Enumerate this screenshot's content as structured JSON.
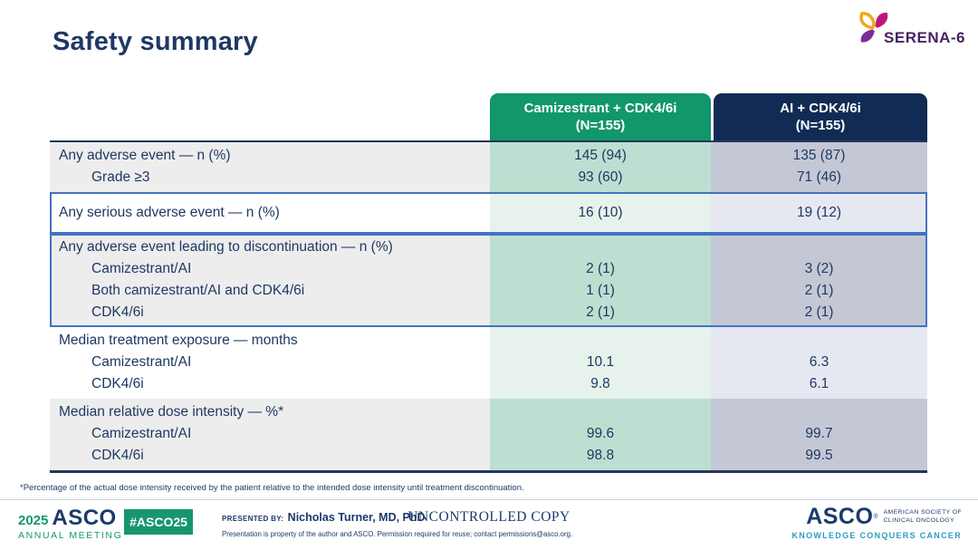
{
  "slide": {
    "title": "Safety summary",
    "footnote": "*Percentage of the actual dose intensity received by the patient relative to the intended dose intensity until treatment discontinuation."
  },
  "serena_logo": {
    "text": "SERENA-6",
    "petal_colors": {
      "orange": "#F2A71B",
      "magenta": "#C2137C",
      "purple": "#7B2E9B"
    }
  },
  "table": {
    "columns": [
      {
        "id": "cami",
        "label": "Camizestrant + CDK4/6i",
        "sublabel": "(N=155)",
        "header_color": "#12966C"
      },
      {
        "id": "ai",
        "label": "AI + CDK4/6i",
        "sublabel": "(N=155)",
        "header_color": "#112B54"
      }
    ],
    "rows": [
      {
        "stripe": "gray",
        "boxed": false,
        "lines": [
          {
            "label": "Any adverse event — n (%)",
            "indent": false,
            "cami": "145 (94)",
            "ai": "135 (87)"
          },
          {
            "label": "Grade ≥3",
            "indent": true,
            "cami": "93 (60)",
            "ai": "71 (46)"
          }
        ]
      },
      {
        "stripe": "white",
        "boxed": true,
        "lines": [
          {
            "label": "Any serious adverse event — n (%)",
            "indent": false,
            "cami": "16 (10)",
            "ai": "19 (12)"
          }
        ]
      },
      {
        "stripe": "gray",
        "boxed": true,
        "lines": [
          {
            "label": "Any adverse event leading to discontinuation — n (%)",
            "indent": false,
            "cami": "",
            "ai": ""
          },
          {
            "label": "Camizestrant/AI",
            "indent": true,
            "cami": "2 (1)",
            "ai": "3 (2)"
          },
          {
            "label": "Both camizestrant/AI and CDK4/6i",
            "indent": true,
            "cami": "1 (1)",
            "ai": "2 (1)"
          },
          {
            "label": "CDK4/6i",
            "indent": true,
            "cami": "2 (1)",
            "ai": "2 (1)"
          }
        ]
      },
      {
        "stripe": "white",
        "boxed": false,
        "lines": [
          {
            "label": "Median treatment exposure — months",
            "indent": false,
            "cami": "",
            "ai": ""
          },
          {
            "label": "Camizestrant/AI",
            "indent": true,
            "cami": "10.1",
            "ai": "6.3"
          },
          {
            "label": "CDK4/6i",
            "indent": true,
            "cami": "9.8",
            "ai": "6.1"
          }
        ]
      },
      {
        "stripe": "gray",
        "boxed": false,
        "lines": [
          {
            "label": "Median relative dose intensity — %*",
            "indent": false,
            "cami": "",
            "ai": ""
          },
          {
            "label": "Camizestrant/AI",
            "indent": true,
            "cami": "99.6",
            "ai": "99.7"
          },
          {
            "label": "CDK4/6i",
            "indent": true,
            "cami": "98.8",
            "ai": "99.5"
          }
        ]
      }
    ]
  },
  "footer": {
    "meeting_year": "2025",
    "meeting_org": "ASCO",
    "meeting_name": "ANNUAL MEETING",
    "hashtag": "#ASCO25",
    "presented_by_label": "PRESENTED BY:",
    "presenter": "Nicholas Turner, MD, PhD",
    "copy_notice": "UNCONTROLLED COPY",
    "permission_note": "Presentation is property of the author and ASCO. Permission required for reuse; contact permissions@asco.org.",
    "asco_logo": {
      "name": "ASCO",
      "org_line1": "AMERICAN SOCIETY OF",
      "org_line2": "CLINICAL ONCOLOGY",
      "tagline": "KNOWLEDGE CONQUERS CANCER"
    }
  },
  "colors": {
    "title_navy": "#1F3864",
    "green_header": "#12966C",
    "navy_header": "#112B54",
    "row_gray": "#EDEDED",
    "cami_tint_dark": "#BDDFD1",
    "cami_tint_light": "#E7F2EC",
    "ai_tint_dark": "#C4C8D4",
    "ai_tint_light": "#E6E8F1",
    "highlight_box_blue": "#4472C4",
    "footer_green": "#16966E",
    "tagline_teal": "#2E9AC0"
  }
}
